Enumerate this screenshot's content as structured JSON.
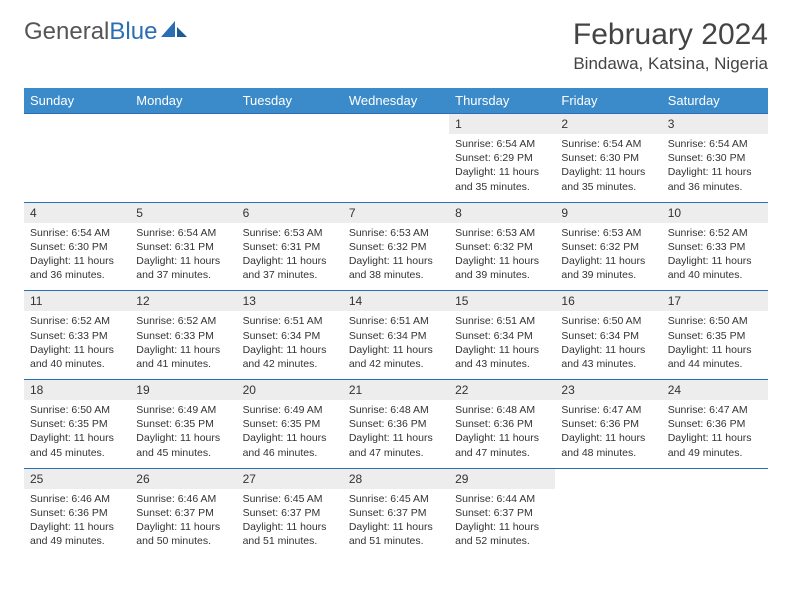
{
  "logo": {
    "part1": "General",
    "part2": "Blue"
  },
  "title": "February 2024",
  "location": "Bindawa, Katsina, Nigeria",
  "colors": {
    "header_bg": "#3b8bca",
    "header_text": "#ffffff",
    "date_bg": "#ededed",
    "border": "#2a6fb5",
    "text": "#333333",
    "logo_gray": "#555555",
    "logo_blue": "#2a6fb5"
  },
  "day_headers": [
    "Sunday",
    "Monday",
    "Tuesday",
    "Wednesday",
    "Thursday",
    "Friday",
    "Saturday"
  ],
  "weeks": [
    [
      null,
      null,
      null,
      null,
      {
        "d": "1",
        "sr": "Sunrise: 6:54 AM",
        "ss": "Sunset: 6:29 PM",
        "dl": "Daylight: 11 hours and 35 minutes."
      },
      {
        "d": "2",
        "sr": "Sunrise: 6:54 AM",
        "ss": "Sunset: 6:30 PM",
        "dl": "Daylight: 11 hours and 35 minutes."
      },
      {
        "d": "3",
        "sr": "Sunrise: 6:54 AM",
        "ss": "Sunset: 6:30 PM",
        "dl": "Daylight: 11 hours and 36 minutes."
      }
    ],
    [
      {
        "d": "4",
        "sr": "Sunrise: 6:54 AM",
        "ss": "Sunset: 6:30 PM",
        "dl": "Daylight: 11 hours and 36 minutes."
      },
      {
        "d": "5",
        "sr": "Sunrise: 6:54 AM",
        "ss": "Sunset: 6:31 PM",
        "dl": "Daylight: 11 hours and 37 minutes."
      },
      {
        "d": "6",
        "sr": "Sunrise: 6:53 AM",
        "ss": "Sunset: 6:31 PM",
        "dl": "Daylight: 11 hours and 37 minutes."
      },
      {
        "d": "7",
        "sr": "Sunrise: 6:53 AM",
        "ss": "Sunset: 6:32 PM",
        "dl": "Daylight: 11 hours and 38 minutes."
      },
      {
        "d": "8",
        "sr": "Sunrise: 6:53 AM",
        "ss": "Sunset: 6:32 PM",
        "dl": "Daylight: 11 hours and 39 minutes."
      },
      {
        "d": "9",
        "sr": "Sunrise: 6:53 AM",
        "ss": "Sunset: 6:32 PM",
        "dl": "Daylight: 11 hours and 39 minutes."
      },
      {
        "d": "10",
        "sr": "Sunrise: 6:52 AM",
        "ss": "Sunset: 6:33 PM",
        "dl": "Daylight: 11 hours and 40 minutes."
      }
    ],
    [
      {
        "d": "11",
        "sr": "Sunrise: 6:52 AM",
        "ss": "Sunset: 6:33 PM",
        "dl": "Daylight: 11 hours and 40 minutes."
      },
      {
        "d": "12",
        "sr": "Sunrise: 6:52 AM",
        "ss": "Sunset: 6:33 PM",
        "dl": "Daylight: 11 hours and 41 minutes."
      },
      {
        "d": "13",
        "sr": "Sunrise: 6:51 AM",
        "ss": "Sunset: 6:34 PM",
        "dl": "Daylight: 11 hours and 42 minutes."
      },
      {
        "d": "14",
        "sr": "Sunrise: 6:51 AM",
        "ss": "Sunset: 6:34 PM",
        "dl": "Daylight: 11 hours and 42 minutes."
      },
      {
        "d": "15",
        "sr": "Sunrise: 6:51 AM",
        "ss": "Sunset: 6:34 PM",
        "dl": "Daylight: 11 hours and 43 minutes."
      },
      {
        "d": "16",
        "sr": "Sunrise: 6:50 AM",
        "ss": "Sunset: 6:34 PM",
        "dl": "Daylight: 11 hours and 43 minutes."
      },
      {
        "d": "17",
        "sr": "Sunrise: 6:50 AM",
        "ss": "Sunset: 6:35 PM",
        "dl": "Daylight: 11 hours and 44 minutes."
      }
    ],
    [
      {
        "d": "18",
        "sr": "Sunrise: 6:50 AM",
        "ss": "Sunset: 6:35 PM",
        "dl": "Daylight: 11 hours and 45 minutes."
      },
      {
        "d": "19",
        "sr": "Sunrise: 6:49 AM",
        "ss": "Sunset: 6:35 PM",
        "dl": "Daylight: 11 hours and 45 minutes."
      },
      {
        "d": "20",
        "sr": "Sunrise: 6:49 AM",
        "ss": "Sunset: 6:35 PM",
        "dl": "Daylight: 11 hours and 46 minutes."
      },
      {
        "d": "21",
        "sr": "Sunrise: 6:48 AM",
        "ss": "Sunset: 6:36 PM",
        "dl": "Daylight: 11 hours and 47 minutes."
      },
      {
        "d": "22",
        "sr": "Sunrise: 6:48 AM",
        "ss": "Sunset: 6:36 PM",
        "dl": "Daylight: 11 hours and 47 minutes."
      },
      {
        "d": "23",
        "sr": "Sunrise: 6:47 AM",
        "ss": "Sunset: 6:36 PM",
        "dl": "Daylight: 11 hours and 48 minutes."
      },
      {
        "d": "24",
        "sr": "Sunrise: 6:47 AM",
        "ss": "Sunset: 6:36 PM",
        "dl": "Daylight: 11 hours and 49 minutes."
      }
    ],
    [
      {
        "d": "25",
        "sr": "Sunrise: 6:46 AM",
        "ss": "Sunset: 6:36 PM",
        "dl": "Daylight: 11 hours and 49 minutes."
      },
      {
        "d": "26",
        "sr": "Sunrise: 6:46 AM",
        "ss": "Sunset: 6:37 PM",
        "dl": "Daylight: 11 hours and 50 minutes."
      },
      {
        "d": "27",
        "sr": "Sunrise: 6:45 AM",
        "ss": "Sunset: 6:37 PM",
        "dl": "Daylight: 11 hours and 51 minutes."
      },
      {
        "d": "28",
        "sr": "Sunrise: 6:45 AM",
        "ss": "Sunset: 6:37 PM",
        "dl": "Daylight: 11 hours and 51 minutes."
      },
      {
        "d": "29",
        "sr": "Sunrise: 6:44 AM",
        "ss": "Sunset: 6:37 PM",
        "dl": "Daylight: 11 hours and 52 minutes."
      },
      null,
      null
    ]
  ]
}
